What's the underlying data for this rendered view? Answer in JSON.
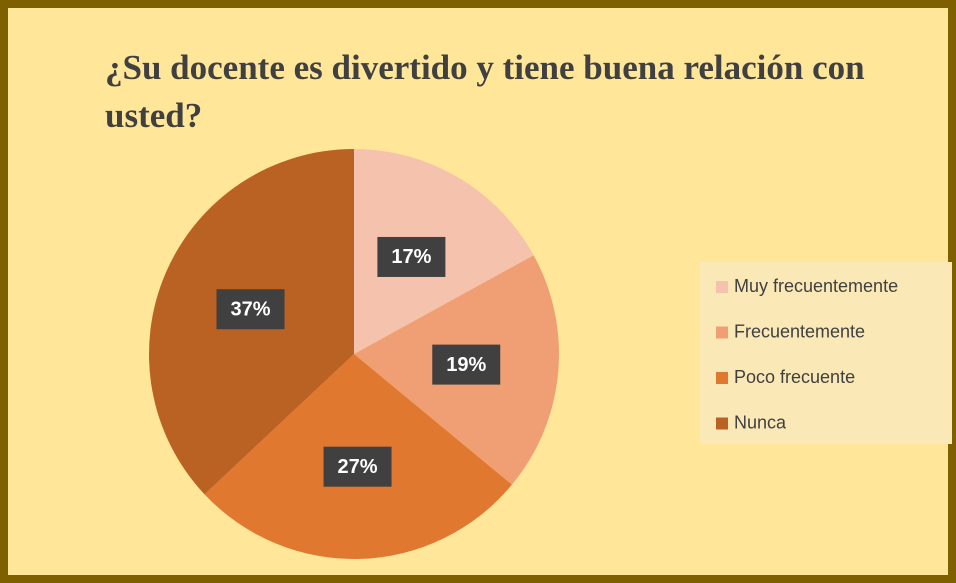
{
  "chart_data": {
    "type": "pie",
    "title": "¿Su docente es divertido y tiene buena relación con usted?",
    "categories": [
      "Muy frecuentemente",
      "Frecuentemente",
      "Poco frecuente",
      "Nunca"
    ],
    "values": [
      17,
      19,
      27,
      37
    ],
    "value_labels": [
      "17%",
      "19%",
      "27%",
      "37%"
    ],
    "colors": [
      "#f5c3ad",
      "#f09f74",
      "#e0782f",
      "#ba6124"
    ],
    "legend": "right"
  }
}
